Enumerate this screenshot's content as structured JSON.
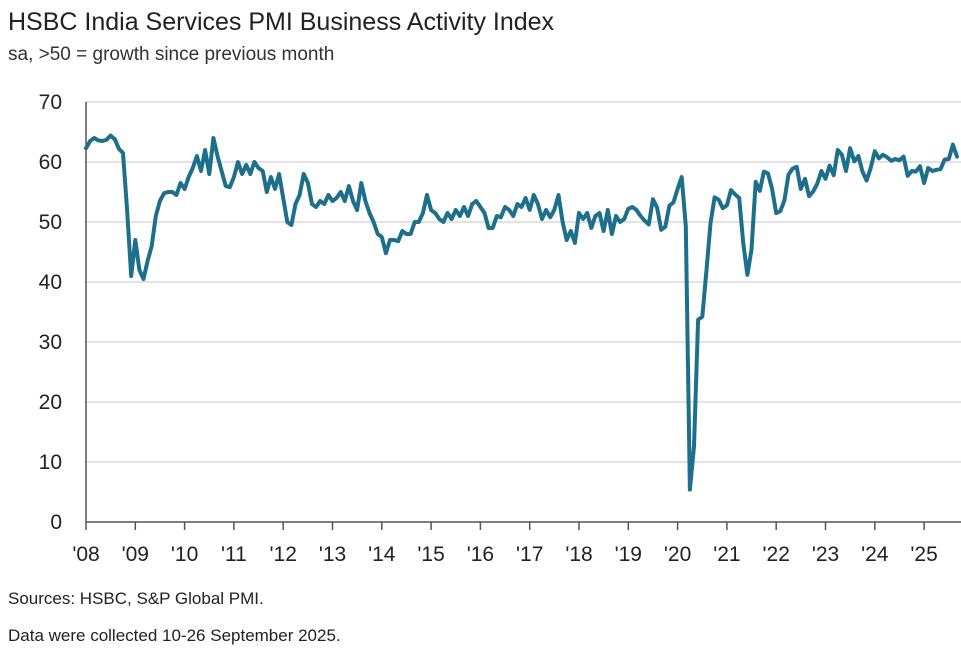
{
  "chart_data": {
    "type": "line",
    "title": "HSBC India Services PMI Business Activity Index",
    "subtitle": "sa, >50 = growth since previous month",
    "xlabel": "",
    "ylabel": "",
    "ylim": [
      0,
      70
    ],
    "yticks": [
      "0",
      "10",
      "20",
      "30",
      "40",
      "50",
      "60",
      "70"
    ],
    "xticks": [
      "'08",
      "'09",
      "'10",
      "'11",
      "'12",
      "'13",
      "'14",
      "'15",
      "'16",
      "'17",
      "'18",
      "'19",
      "'20",
      "'21",
      "'22",
      "'23",
      "'24",
      "'25"
    ],
    "x_start": "2008-01",
    "x_end": "2025-09",
    "frequency": "monthly",
    "grid": true,
    "line_color": "#1d6f8c",
    "values": [
      62.3,
      63.5,
      64,
      63.6,
      63.5,
      63.7,
      64.4,
      63.8,
      62.2,
      61.5,
      52,
      41,
      47,
      42,
      40.5,
      43.5,
      46,
      51,
      53.5,
      54.8,
      55,
      55,
      54.5,
      56.5,
      55.5,
      57.5,
      59,
      61,
      58.5,
      62,
      58,
      64,
      61,
      58.5,
      56,
      55.8,
      57.5,
      60,
      58,
      59.5,
      58,
      60,
      59,
      58.5,
      55,
      57.5,
      55.5,
      58,
      54,
      50,
      49.5,
      53,
      54.5,
      58,
      56.5,
      53,
      52.5,
      53.5,
      53,
      54.5,
      53.5,
      54,
      55,
      53.5,
      56,
      53.5,
      52,
      56.5,
      53.5,
      51.5,
      50,
      48,
      47.5,
      44.8,
      47,
      47,
      46.8,
      48.5,
      48,
      48,
      50,
      50,
      51.5,
      54.5,
      52,
      51.5,
      50.5,
      50,
      51.5,
      50.5,
      52,
      51,
      52.5,
      51,
      53,
      53.5,
      52.5,
      51.5,
      49,
      49,
      51,
      50.8,
      52.5,
      52,
      51,
      53,
      52.5,
      54,
      52,
      54.5,
      53,
      50.5,
      52,
      50.8,
      52,
      54.5,
      50,
      47,
      48.5,
      46.5,
      51.5,
      50.5,
      51.5,
      49,
      51,
      51.5,
      48.5,
      52,
      48,
      51,
      50,
      50.5,
      52.2,
      52.5,
      52,
      51,
      50.2,
      49.6,
      53.8,
      52.4,
      48.7,
      49.2,
      52.7,
      53.3,
      55.5,
      57.5,
      49.3,
      5.4,
      12.6,
      33.7,
      34.2,
      41.8,
      49.8,
      54.1,
      53.7,
      52.3,
      52.8,
      55.3,
      54.6,
      54,
      46.4,
      41.2,
      45.4,
      56.7,
      55.2,
      58.4,
      58.1,
      55.5,
      51.5,
      51.8,
      53.6,
      57.9,
      58.9,
      59.2,
      55.5,
      57.2,
      54.3,
      55.1,
      56.4,
      58.5,
      57.2,
      59.4,
      57.8,
      62,
      61.2,
      58.5,
      62.3,
      60.1,
      61,
      58.4,
      56.9,
      59,
      61.8,
      60.6,
      61.2,
      60.8,
      60.2,
      60.5,
      60.3,
      60.9,
      57.7,
      58.5,
      58.4,
      59.3,
      56.5,
      59,
      58.5,
      58.7,
      58.8,
      60.4,
      60.5,
      62.9,
      60.9
    ]
  },
  "footer": {
    "sources": "Sources: HSBC, S&P Global PMI.",
    "collected": "Data were collected 10-26 September 2025."
  }
}
